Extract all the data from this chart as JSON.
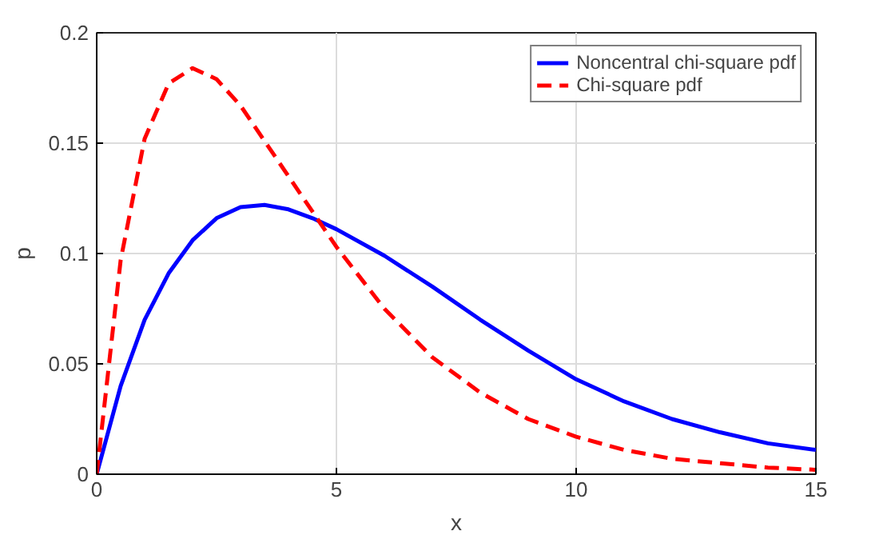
{
  "chart_data": {
    "type": "line",
    "xlabel": "x",
    "ylabel": "p",
    "xlim": [
      0,
      15
    ],
    "ylim": [
      0,
      0.2
    ],
    "xticks": [
      0,
      5,
      10,
      15
    ],
    "yticks": [
      0,
      0.05,
      0.1,
      0.15,
      0.2
    ],
    "grid": true,
    "legend": "top right",
    "series": [
      {
        "name": "Noncentral chi-square pdf",
        "color": "#0000ff",
        "line_style": "solid",
        "x": [
          0,
          0.5,
          1,
          1.5,
          2,
          2.5,
          3,
          3.5,
          4,
          4.5,
          5,
          6,
          7,
          8,
          9,
          10,
          11,
          12,
          13,
          14,
          15
        ],
        "values": [
          0,
          0.04,
          0.07,
          0.091,
          0.106,
          0.116,
          0.121,
          0.122,
          0.12,
          0.116,
          0.111,
          0.099,
          0.085,
          0.07,
          0.056,
          0.043,
          0.033,
          0.025,
          0.019,
          0.014,
          0.011
        ]
      },
      {
        "name": "Chi-square pdf",
        "color": "#ff0000",
        "line_style": "dashed",
        "x": [
          0,
          0.5,
          1,
          1.5,
          2,
          2.5,
          3,
          4,
          5,
          6,
          7,
          8,
          9,
          10,
          11,
          12,
          13,
          14,
          15
        ],
        "values": [
          0,
          0.097,
          0.152,
          0.177,
          0.184,
          0.179,
          0.167,
          0.135,
          0.103,
          0.075,
          0.053,
          0.037,
          0.025,
          0.017,
          0.011,
          0.007,
          0.005,
          0.003,
          0.002
        ]
      }
    ]
  }
}
